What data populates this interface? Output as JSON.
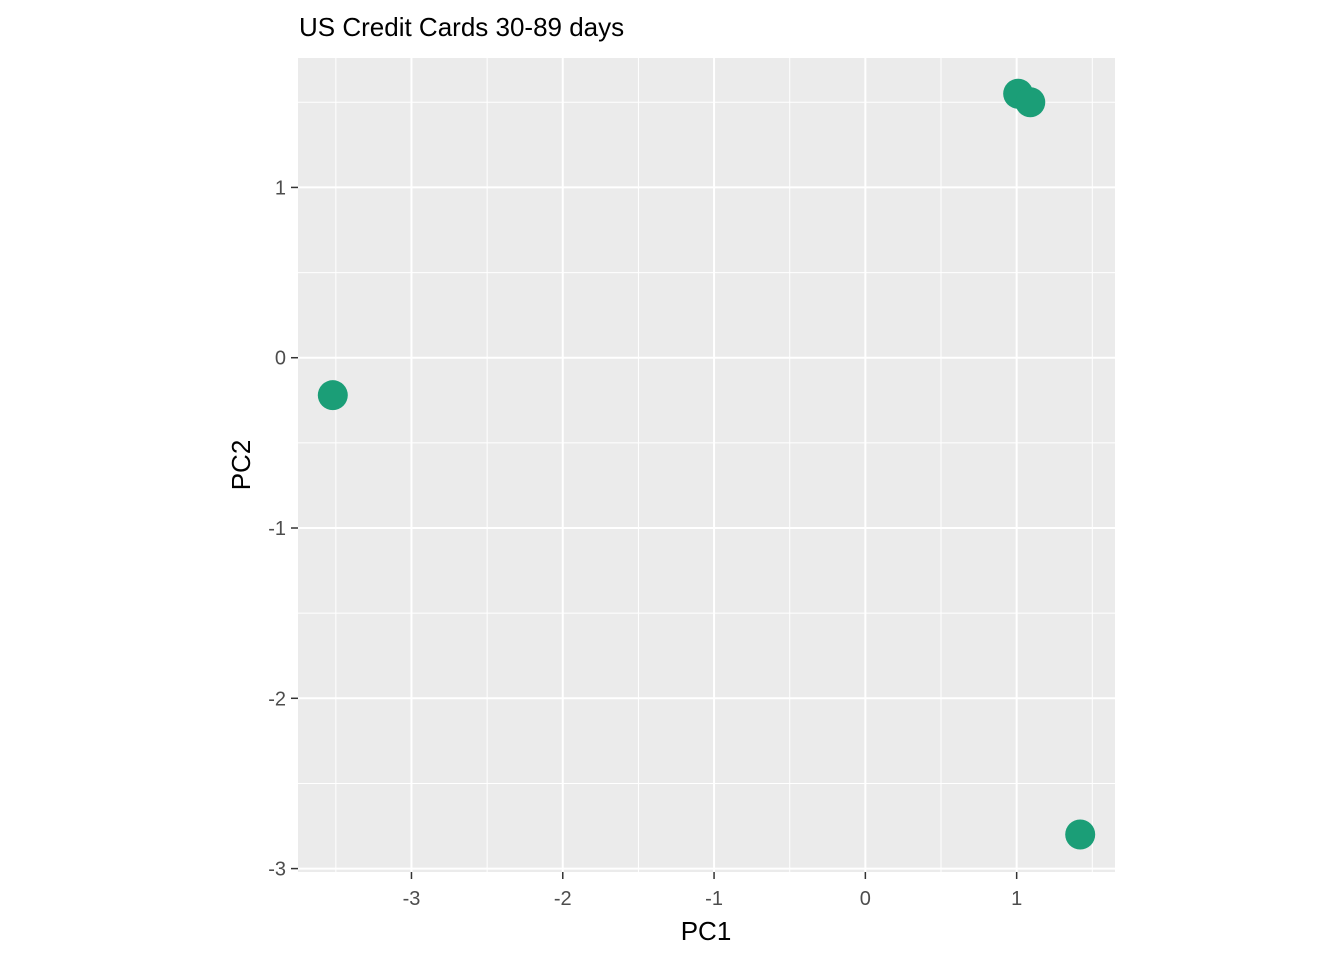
{
  "chart_data": {
    "type": "scatter",
    "title": "US Credit Cards 30-89 days",
    "xlabel": "PC1",
    "ylabel": "PC2",
    "xlim": [
      -3.75,
      1.65
    ],
    "ylim": [
      -3.02,
      1.76
    ],
    "x_ticks": [
      -3,
      -2,
      -1,
      0,
      1
    ],
    "y_ticks": [
      -3,
      -2,
      -1,
      0,
      1
    ],
    "x_tick_labels": [
      "-3",
      "-2",
      "-1",
      "0",
      "1"
    ],
    "y_tick_labels": [
      "-3",
      "-2",
      "-1",
      "0",
      "1"
    ],
    "grid": true,
    "legend": "none",
    "points": [
      {
        "x": -3.52,
        "y": -0.22
      },
      {
        "x": 1.01,
        "y": 1.55
      },
      {
        "x": 1.09,
        "y": 1.5
      },
      {
        "x": 1.42,
        "y": -2.8
      }
    ],
    "colors": {
      "panel": "#ebebeb",
      "grid_major": "#ffffff",
      "point": "#1b9e77",
      "tick": "#333333"
    }
  }
}
